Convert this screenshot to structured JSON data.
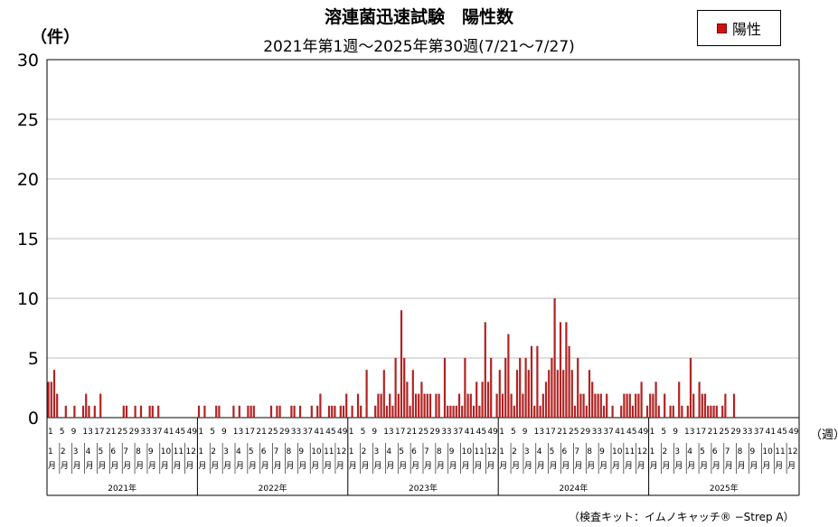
{
  "title": "溶連菌迅速試験　陽性数",
  "subtitle": "2021年第1週～2025年第30週(7/21～7/27)",
  "ylabel": "（件）",
  "xunit": "（週）",
  "legend": "陽性",
  "footnote": "（検査キット：イムノキャッチ® −Strep A）",
  "colors": {
    "bar": "#b22222",
    "grid": "#bfbfbf"
  },
  "chart_data": {
    "type": "bar",
    "title": "溶連菌迅速試験　陽性数",
    "subtitle": "2021年第1週～2025年第30週(7/21～7/27)",
    "ylabel": "（件）",
    "xlabel": "（週）",
    "ylim": [
      0,
      30
    ],
    "yticks": [
      0,
      5,
      10,
      15,
      20,
      25,
      30
    ],
    "grid": true,
    "legend_position": "top-right",
    "series": [
      {
        "name": "陽性",
        "years": [
          {
            "year": "2021年",
            "values": [
              3,
              3,
              4,
              2,
              0,
              0,
              1,
              0,
              0,
              1,
              0,
              0,
              1,
              2,
              1,
              0,
              1,
              0,
              2,
              0,
              0,
              0,
              0,
              0,
              0,
              0,
              1,
              1,
              0,
              0,
              1,
              0,
              1,
              0,
              0,
              1,
              1,
              0,
              1,
              0,
              0,
              0,
              0,
              0,
              0,
              0,
              0,
              0,
              0,
              0,
              0,
              0
            ]
          },
          {
            "year": "2022年",
            "values": [
              1,
              0,
              1,
              0,
              0,
              0,
              1,
              1,
              0,
              0,
              0,
              0,
              1,
              0,
              1,
              0,
              0,
              1,
              1,
              1,
              0,
              0,
              0,
              0,
              0,
              1,
              0,
              1,
              1,
              0,
              0,
              0,
              1,
              1,
              0,
              1,
              0,
              0,
              0,
              1,
              0,
              1,
              2,
              0,
              0,
              1,
              1,
              1,
              0,
              1,
              1,
              2
            ]
          },
          {
            "year": "2023年",
            "values": [
              0,
              1,
              0,
              2,
              1,
              0,
              4,
              0,
              0,
              1,
              2,
              2,
              4,
              1,
              2,
              1,
              5,
              2,
              9,
              5,
              3,
              1,
              4,
              2,
              2,
              3,
              2,
              2,
              2,
              0,
              2,
              2,
              0,
              5,
              1,
              1,
              1,
              1,
              2,
              1,
              5,
              2,
              2,
              1,
              3,
              1,
              3,
              8,
              3,
              5,
              0,
              2
            ]
          },
          {
            "year": "2024年",
            "values": [
              4,
              2,
              5,
              7,
              2,
              1,
              4,
              5,
              2,
              5,
              4,
              6,
              1,
              6,
              1,
              2,
              3,
              4,
              5,
              10,
              4,
              8,
              4,
              8,
              6,
              4,
              1,
              5,
              2,
              2,
              1,
              4,
              3,
              2,
              2,
              2,
              1,
              2,
              0,
              1,
              0,
              0,
              1,
              2,
              2,
              2,
              1,
              2,
              2,
              3,
              0,
              1
            ]
          },
          {
            "year": "2025年",
            "values": [
              2,
              2,
              3,
              1,
              0,
              2,
              0,
              1,
              1,
              0,
              3,
              1,
              0,
              1,
              5,
              2,
              0,
              3,
              2,
              2,
              1,
              1,
              1,
              1,
              0,
              1,
              2,
              0,
              0,
              2
            ]
          }
        ]
      }
    ],
    "week_ticks": [
      "1",
      "5",
      "9",
      "13",
      "17",
      "21",
      "25",
      "29",
      "33",
      "37",
      "41",
      "45",
      "49"
    ],
    "month_labels": [
      "1",
      "2",
      "3",
      "4",
      "5",
      "6",
      "7",
      "8",
      "9",
      "10",
      "11",
      "12"
    ],
    "month_suffix": "月",
    "year_labels": [
      "2021年",
      "2022年",
      "2023年",
      "2024年",
      "2025年"
    ]
  }
}
